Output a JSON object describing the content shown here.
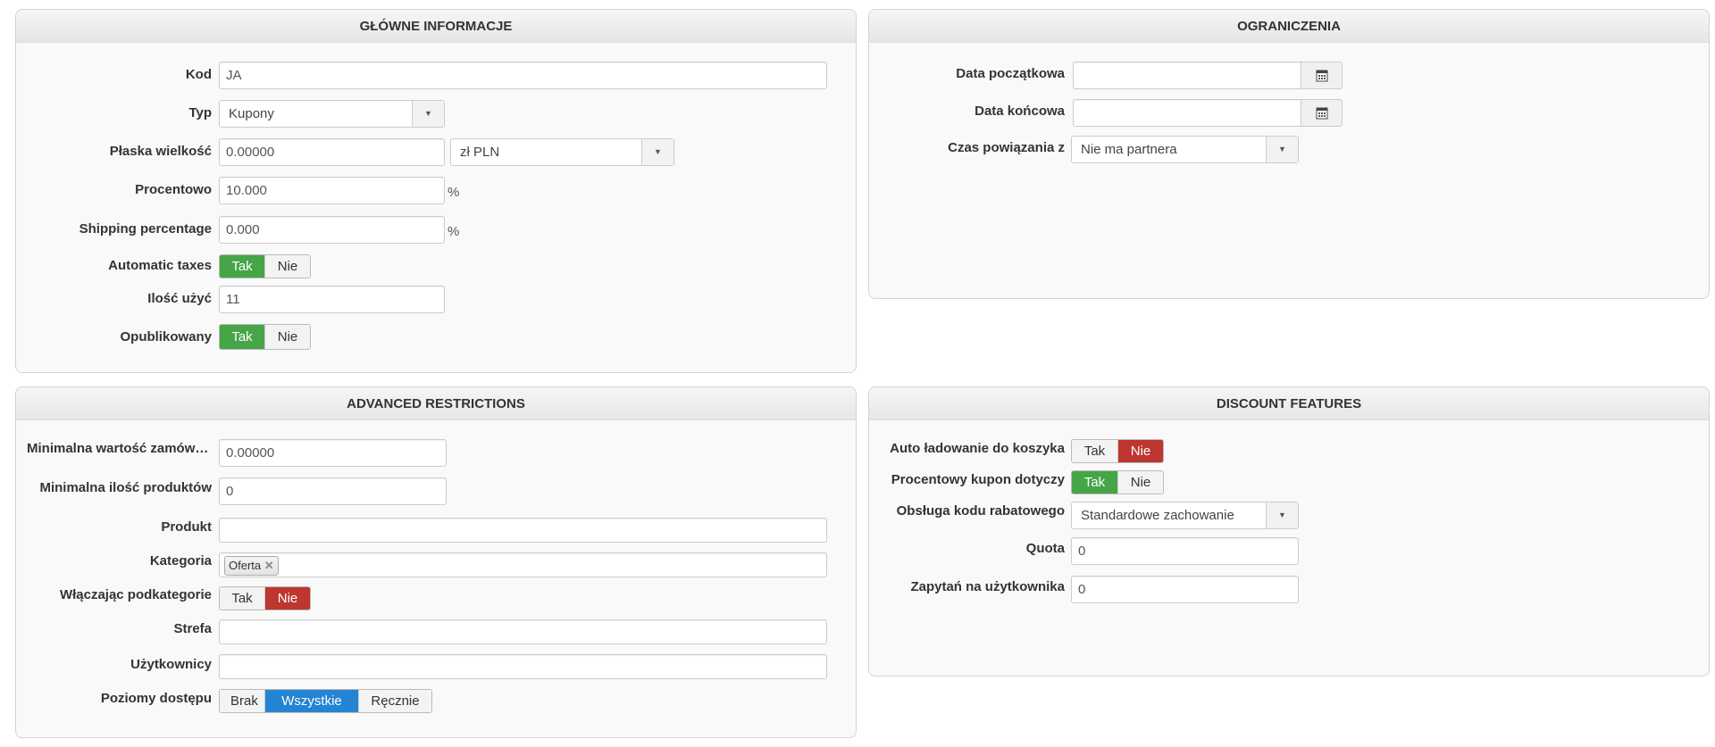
{
  "main_info": {
    "title": "GŁÓWNE INFORMACJE",
    "kod_label": "Kod",
    "kod_value": "JA",
    "typ_label": "Typ",
    "typ_value": "Kupony",
    "flat_label": "Płaska wielkość",
    "flat_value": "0.00000",
    "currency_value": "zł PLN",
    "percent_label": "Procentowo",
    "percent_value": "10.000",
    "percent_unit": "%",
    "shipping_label": "Shipping percentage",
    "shipping_value": "0.000",
    "shipping_unit": "%",
    "auto_taxes_label": "Automatic taxes",
    "auto_taxes": {
      "yes": "Tak",
      "no": "Nie",
      "selected": "Tak"
    },
    "uses_label": "Ilość użyć",
    "uses_value": "11",
    "published_label": "Opublikowany",
    "published": {
      "yes": "Tak",
      "no": "Nie",
      "selected": "Tak"
    }
  },
  "restrictions": {
    "title": "OGRANICZENIA",
    "start_label": "Data początkowa",
    "start_value": "",
    "end_label": "Data końcowa",
    "end_value": "",
    "partner_label": "Czas powiązania z",
    "partner_value": "Nie ma partnera"
  },
  "advanced": {
    "title": "ADVANCED RESTRICTIONS",
    "min_order_label": "Minimalna wartość zamówienia",
    "min_order_value": "0.00000",
    "min_products_label": "Minimalna ilość produktów",
    "min_products_value": "0",
    "product_label": "Produkt",
    "product_value": "",
    "category_label": "Kategoria",
    "category_tags": [
      "Oferta"
    ],
    "subcat_label": "Włączając podkategorie",
    "subcat": {
      "yes": "Tak",
      "no": "Nie",
      "selected": "Nie"
    },
    "zone_label": "Strefa",
    "zone_value": "",
    "users_label": "Użytkownicy",
    "users_value": "",
    "access_label": "Poziomy dostępu",
    "access": {
      "options": [
        "Brak",
        "Wszystkie",
        "Ręcznie"
      ],
      "selected": "Wszystkie"
    }
  },
  "features": {
    "title": "DISCOUNT FEATURES",
    "autoload_label": "Auto ładowanie do koszyka",
    "autoload": {
      "yes": "Tak",
      "no": "Nie",
      "selected": "Nie"
    },
    "percent_coupon_label": "Procentowy kupon dotyczy",
    "percent_coupon": {
      "yes": "Tak",
      "no": "Nie",
      "selected": "Tak"
    },
    "code_handling_label": "Obsługa kodu rabatowego",
    "code_handling_value": "Standardowe zachowanie",
    "quota_label": "Quota",
    "quota_value": "0",
    "per_user_label": "Zapytań na użytkownika",
    "per_user_value": "0"
  },
  "colors": {
    "yes_active": "#46a546",
    "no_active": "#bd362f",
    "selected_blue": "#2384d3"
  }
}
